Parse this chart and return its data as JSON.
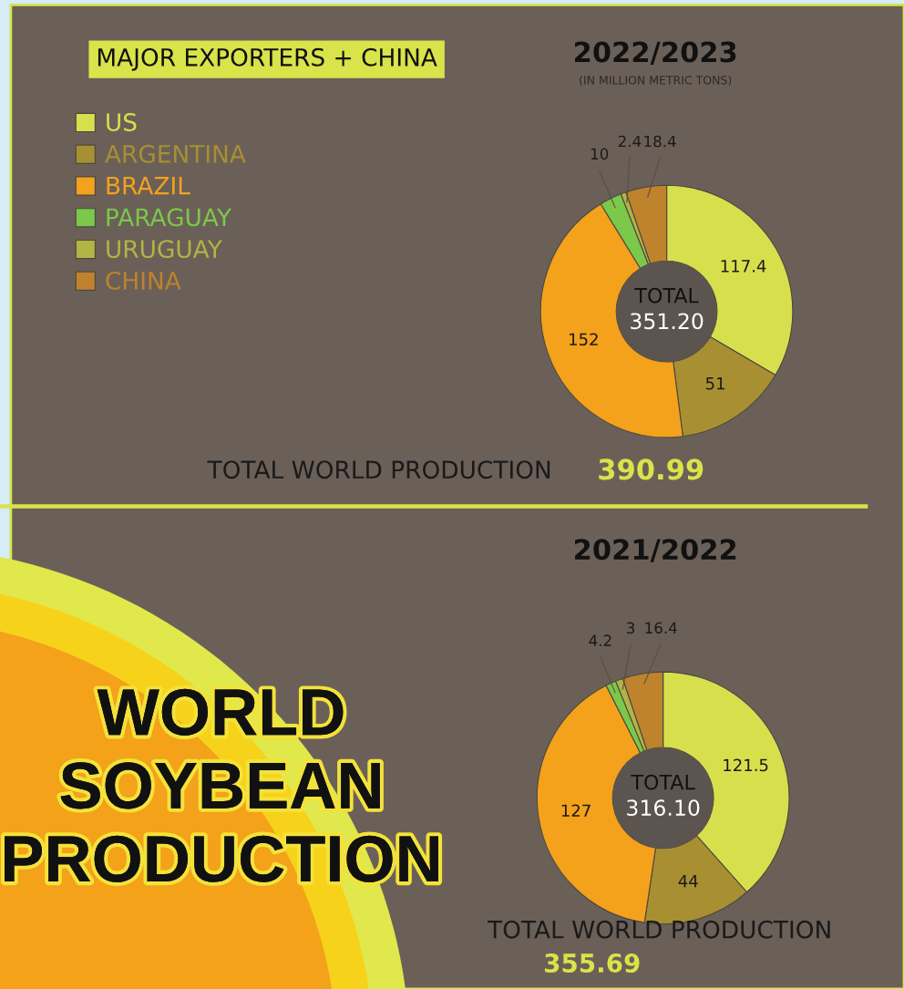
{
  "chart_data": [
    {
      "type": "donut",
      "title": "2022/2023",
      "subtitle": "(IN MILLION METRIC TONS)",
      "categories": [
        "US",
        "ARGENTINA",
        "BRAZIL",
        "PARAGUAY",
        "URUGUAY",
        "CHINA"
      ],
      "values": [
        117.4,
        51,
        152,
        10,
        2.4,
        18.4
      ],
      "colors": [
        "#d8df4c",
        "#a88f32",
        "#f4a11c",
        "#7cc84a",
        "#b2b444",
        "#bf822d"
      ],
      "data_labels": true,
      "legend": "top left",
      "annotations": [
        "MAJOR EXPORTERS + CHINA",
        "TOTAL",
        "351.20",
        "TOTAL WORLD PRODUCTION",
        "390.99"
      ]
    },
    {
      "type": "donut",
      "title": "2021/2022",
      "values": [
        121.5,
        44,
        127,
        4.2,
        3,
        16.4
      ],
      "colors": [
        "#d8df4c",
        "#a88f32",
        "#f4a11c",
        "#7cc84a",
        "#b2b444",
        "#bf822d"
      ],
      "data_labels": true,
      "annotations": [
        "TOTAL",
        "316.10",
        "TOTAL WORLD PRODUCTION",
        "355.69",
        "WORLD SOYBEAN PRODUCTION"
      ]
    }
  ]
}
